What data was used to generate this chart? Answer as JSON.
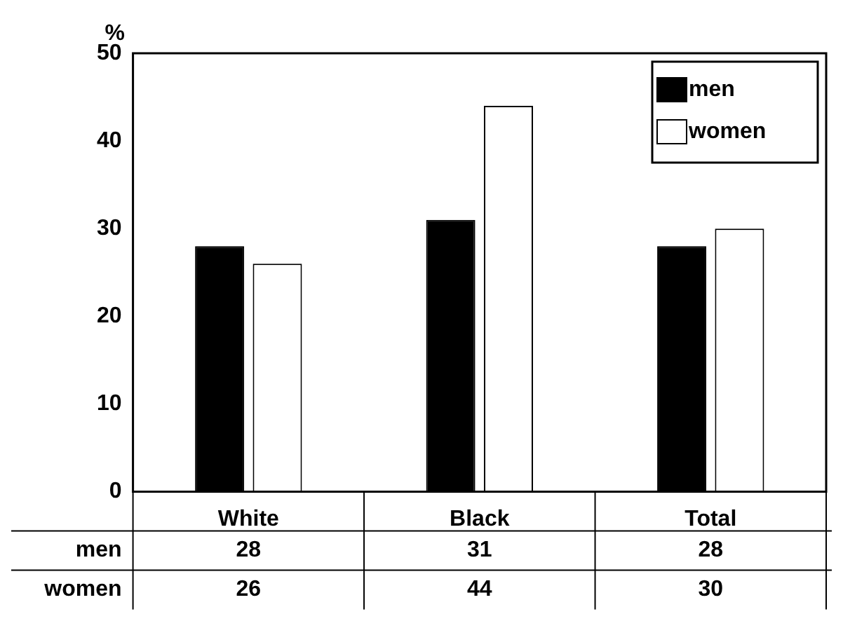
{
  "chart_data": {
    "type": "bar",
    "ylabel": "%",
    "categories": [
      "White",
      "Black",
      "Total"
    ],
    "series": [
      {
        "name": "men",
        "color": "#000000",
        "values": [
          28,
          31,
          28
        ]
      },
      {
        "name": "women",
        "color": "#ffffff",
        "values": [
          26,
          44,
          30
        ]
      }
    ],
    "ylim": [
      0,
      50
    ],
    "yticks": [
      0,
      10,
      20,
      30,
      40,
      50
    ],
    "grid": false,
    "legend": "top right",
    "data_labels": true
  }
}
